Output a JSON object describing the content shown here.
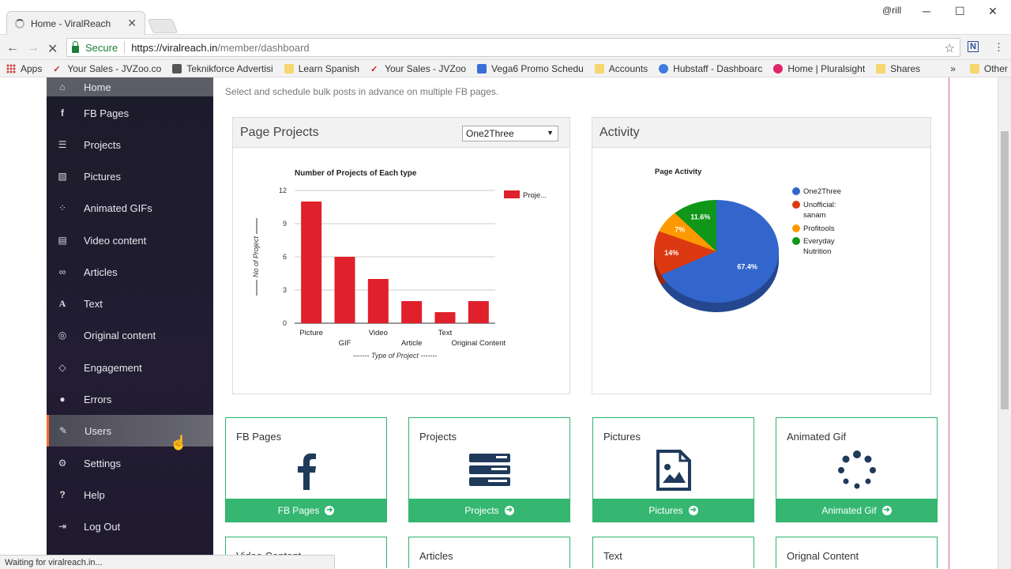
{
  "browser": {
    "tab_title": "Home - ViralReach",
    "secure_label": "Secure",
    "url_host": "https://viralreach.in",
    "url_path": "/member/dashboard",
    "status_text": "Waiting for viralreach.in...",
    "user_badge": "@rill",
    "bookmarks": [
      {
        "label": "Apps"
      },
      {
        "label": "Your Sales - JVZoo.co"
      },
      {
        "label": "Teknikforce Advertisi"
      },
      {
        "label": "Learn Spanish"
      },
      {
        "label": "Your Sales - JVZoo"
      },
      {
        "label": "Vega6 Promo Schedu"
      },
      {
        "label": "Accounts"
      },
      {
        "label": "Hubstaff - Dashboarc"
      },
      {
        "label": "Home | Pluralsight"
      },
      {
        "label": "Shares"
      },
      {
        "label": "Other bookmarks"
      }
    ],
    "more_bookmarks": "»"
  },
  "sidebar": {
    "items": [
      {
        "label": "Home",
        "icon": "home-icon"
      },
      {
        "label": "FB Pages",
        "icon": "facebook-icon"
      },
      {
        "label": "Projects",
        "icon": "list-icon"
      },
      {
        "label": "Pictures",
        "icon": "image-icon"
      },
      {
        "label": "Animated GIFs",
        "icon": "spinner-icon"
      },
      {
        "label": "Video content",
        "icon": "video-file-icon"
      },
      {
        "label": "Articles",
        "icon": "link-icon"
      },
      {
        "label": "Text",
        "icon": "font-icon"
      },
      {
        "label": "Original content",
        "icon": "globe-icon"
      },
      {
        "label": "Engagement",
        "icon": "diamond-icon"
      },
      {
        "label": "Errors",
        "icon": "bug-icon"
      },
      {
        "label": "Users",
        "icon": "edit-icon"
      },
      {
        "label": "Settings",
        "icon": "cogs-icon"
      },
      {
        "label": "Help",
        "icon": "question-icon"
      },
      {
        "label": "Log Out",
        "icon": "sign-out-icon"
      }
    ]
  },
  "main": {
    "subtitle": "Select and schedule bulk posts in advance on multiple FB pages.",
    "projects_panel": {
      "title": "Page Projects",
      "selected_page": "One2Three"
    },
    "activity_panel": {
      "title": "Activity"
    },
    "cards": [
      {
        "title": "FB Pages",
        "button": "FB Pages",
        "icon": "facebook-icon"
      },
      {
        "title": "Projects",
        "button": "Projects",
        "icon": "list-icon"
      },
      {
        "title": "Pictures",
        "button": "Pictures",
        "icon": "image-icon"
      },
      {
        "title": "Animated Gif",
        "button": "Animated Gif",
        "icon": "spinner-icon"
      },
      {
        "title": "Video Content"
      },
      {
        "title": "Articles"
      },
      {
        "title": "Text"
      },
      {
        "title": "Orignal Content"
      }
    ]
  },
  "chart_data": [
    {
      "type": "bar",
      "title": "Number of Projects of Each type",
      "xlabel": "------- Type of Project -------",
      "ylabel": "No of Project",
      "categories": [
        "Picture",
        "GIF",
        "Video",
        "Article",
        "Text",
        "Original Content"
      ],
      "series": [
        {
          "name": "Proje...",
          "values": [
            11,
            6,
            4,
            2,
            1,
            2
          ]
        }
      ],
      "ylim": [
        0,
        12
      ],
      "yticks": [
        0,
        3,
        6,
        9,
        12
      ],
      "color": "#e0202a",
      "legend": "top-right"
    },
    {
      "type": "pie",
      "title": "Page Activity",
      "labels": [
        "One2Three",
        "Unofficial: sanam",
        "Profitools",
        "Everyday Nutrition"
      ],
      "values": [
        67.4,
        14,
        7,
        11.6
      ],
      "value_labels": [
        "67.4%",
        "14%",
        "7%",
        "11.6%"
      ],
      "colors": [
        "#3366cc",
        "#dc3912",
        "#ff9900",
        "#109618"
      ],
      "legend": "right"
    }
  ]
}
